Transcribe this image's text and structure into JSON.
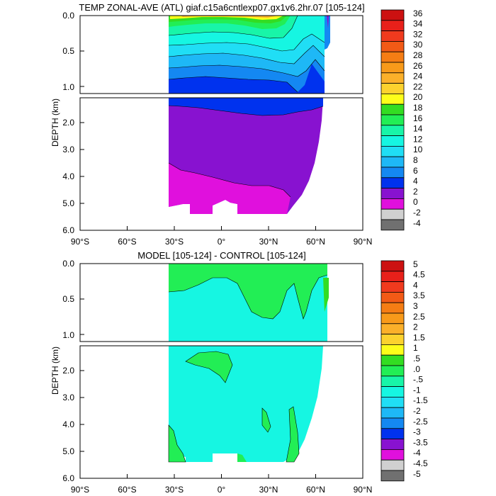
{
  "chart_data": [
    {
      "type": "heatmap",
      "title": "TEMP ZONAL-AVE (ATL) giaf.c15a6cntlexp07.gx1v6.2hr.07 [105-124]",
      "ylabel": "DEPTH (km)",
      "x_ticks": [
        "90°S",
        "60°S",
        "30°S",
        "0°",
        "30°N",
        "60°N",
        "90°N"
      ],
      "y_ticks_upper": [
        "0.0",
        "0.5",
        "1.0"
      ],
      "y_ticks_lower": [
        "2.0",
        "3.0",
        "4.0",
        "5.0",
        "6.0"
      ],
      "xlim": [
        -90,
        90
      ],
      "ylim_upper_km": [
        0,
        1.1
      ],
      "ylim_lower_km": [
        1.1,
        6.0
      ],
      "colorbar_labels": [
        "36",
        "34",
        "32",
        "30",
        "28",
        "26",
        "24",
        "22",
        "20",
        "18",
        "16",
        "14",
        "12",
        "10",
        "8",
        "6",
        "4",
        "2",
        "0",
        "-2",
        "-4"
      ],
      "colorbar_colors": [
        "#cc1111",
        "#e8201a",
        "#f03a1e",
        "#f25a16",
        "#f57d14",
        "#f89a1a",
        "#fbb02a",
        "#fcd22e",
        "#fdfe1a",
        "#33dd22",
        "#22ee55",
        "#18f5a8",
        "#16f6e2",
        "#20def5",
        "#1eb8f6",
        "#1488f2",
        "#0032ee",
        "#8812d0",
        "#e010dd",
        "#d0d0d0",
        "#707070"
      ],
      "bands_upper": [
        {
          "level": 36,
          "depth_km": 0.0
        },
        {
          "level": 26,
          "depth_km": 0.03
        },
        {
          "level": 20,
          "depth_km": 0.1
        },
        {
          "level": 14,
          "depth_km": 0.25
        },
        {
          "level": 10,
          "depth_km": 0.45
        },
        {
          "level": 8,
          "depth_km": 0.65
        },
        {
          "level": 6,
          "depth_km": 0.85
        },
        {
          "level": 4,
          "depth_km": 1.0
        }
      ],
      "ocean_extent_lat": [
        -35,
        65
      ],
      "bottom_water_level": 2,
      "deep_water_level": 4
    },
    {
      "type": "heatmap",
      "title": "MODEL [105-124] - CONTROL [105-124]",
      "ylabel": "DEPTH (km)",
      "x_ticks": [
        "90°S",
        "60°S",
        "30°S",
        "0°",
        "30°N",
        "60°N",
        "90°N"
      ],
      "y_ticks_upper": [
        "0.0",
        "0.5",
        "1.0"
      ],
      "y_ticks_lower": [
        "2.0",
        "3.0",
        "4.0",
        "5.0",
        "6.0"
      ],
      "xlim": [
        -90,
        90
      ],
      "ylim_upper_km": [
        0,
        1.1
      ],
      "ylim_lower_km": [
        1.1,
        6.0
      ],
      "colorbar_labels": [
        "5",
        "4.5",
        "4",
        "3.5",
        "3",
        "2.5",
        "2",
        "1.5",
        "1",
        ".5",
        ".0",
        "-.5",
        "-1",
        "-1.5",
        "-2",
        "-2.5",
        "-3",
        "-3.5",
        "-4",
        "-4.5",
        "-5"
      ],
      "colorbar_colors": [
        "#cc1111",
        "#e8201a",
        "#f03a1e",
        "#f25a16",
        "#f57d14",
        "#f89a1a",
        "#fbb02a",
        "#fcd22e",
        "#fdfe1a",
        "#33dd22",
        "#22ee55",
        "#18f5a8",
        "#16f6e2",
        "#20def5",
        "#1eb8f6",
        "#1488f2",
        "#0032ee",
        "#8812d0",
        "#e010dd",
        "#d0d0d0",
        "#707070"
      ],
      "dominant_range": [
        "-.5",
        ".0"
      ],
      "positive_patch_range": [
        ".0",
        ".5"
      ],
      "ocean_extent_lat": [
        -35,
        65
      ]
    }
  ]
}
